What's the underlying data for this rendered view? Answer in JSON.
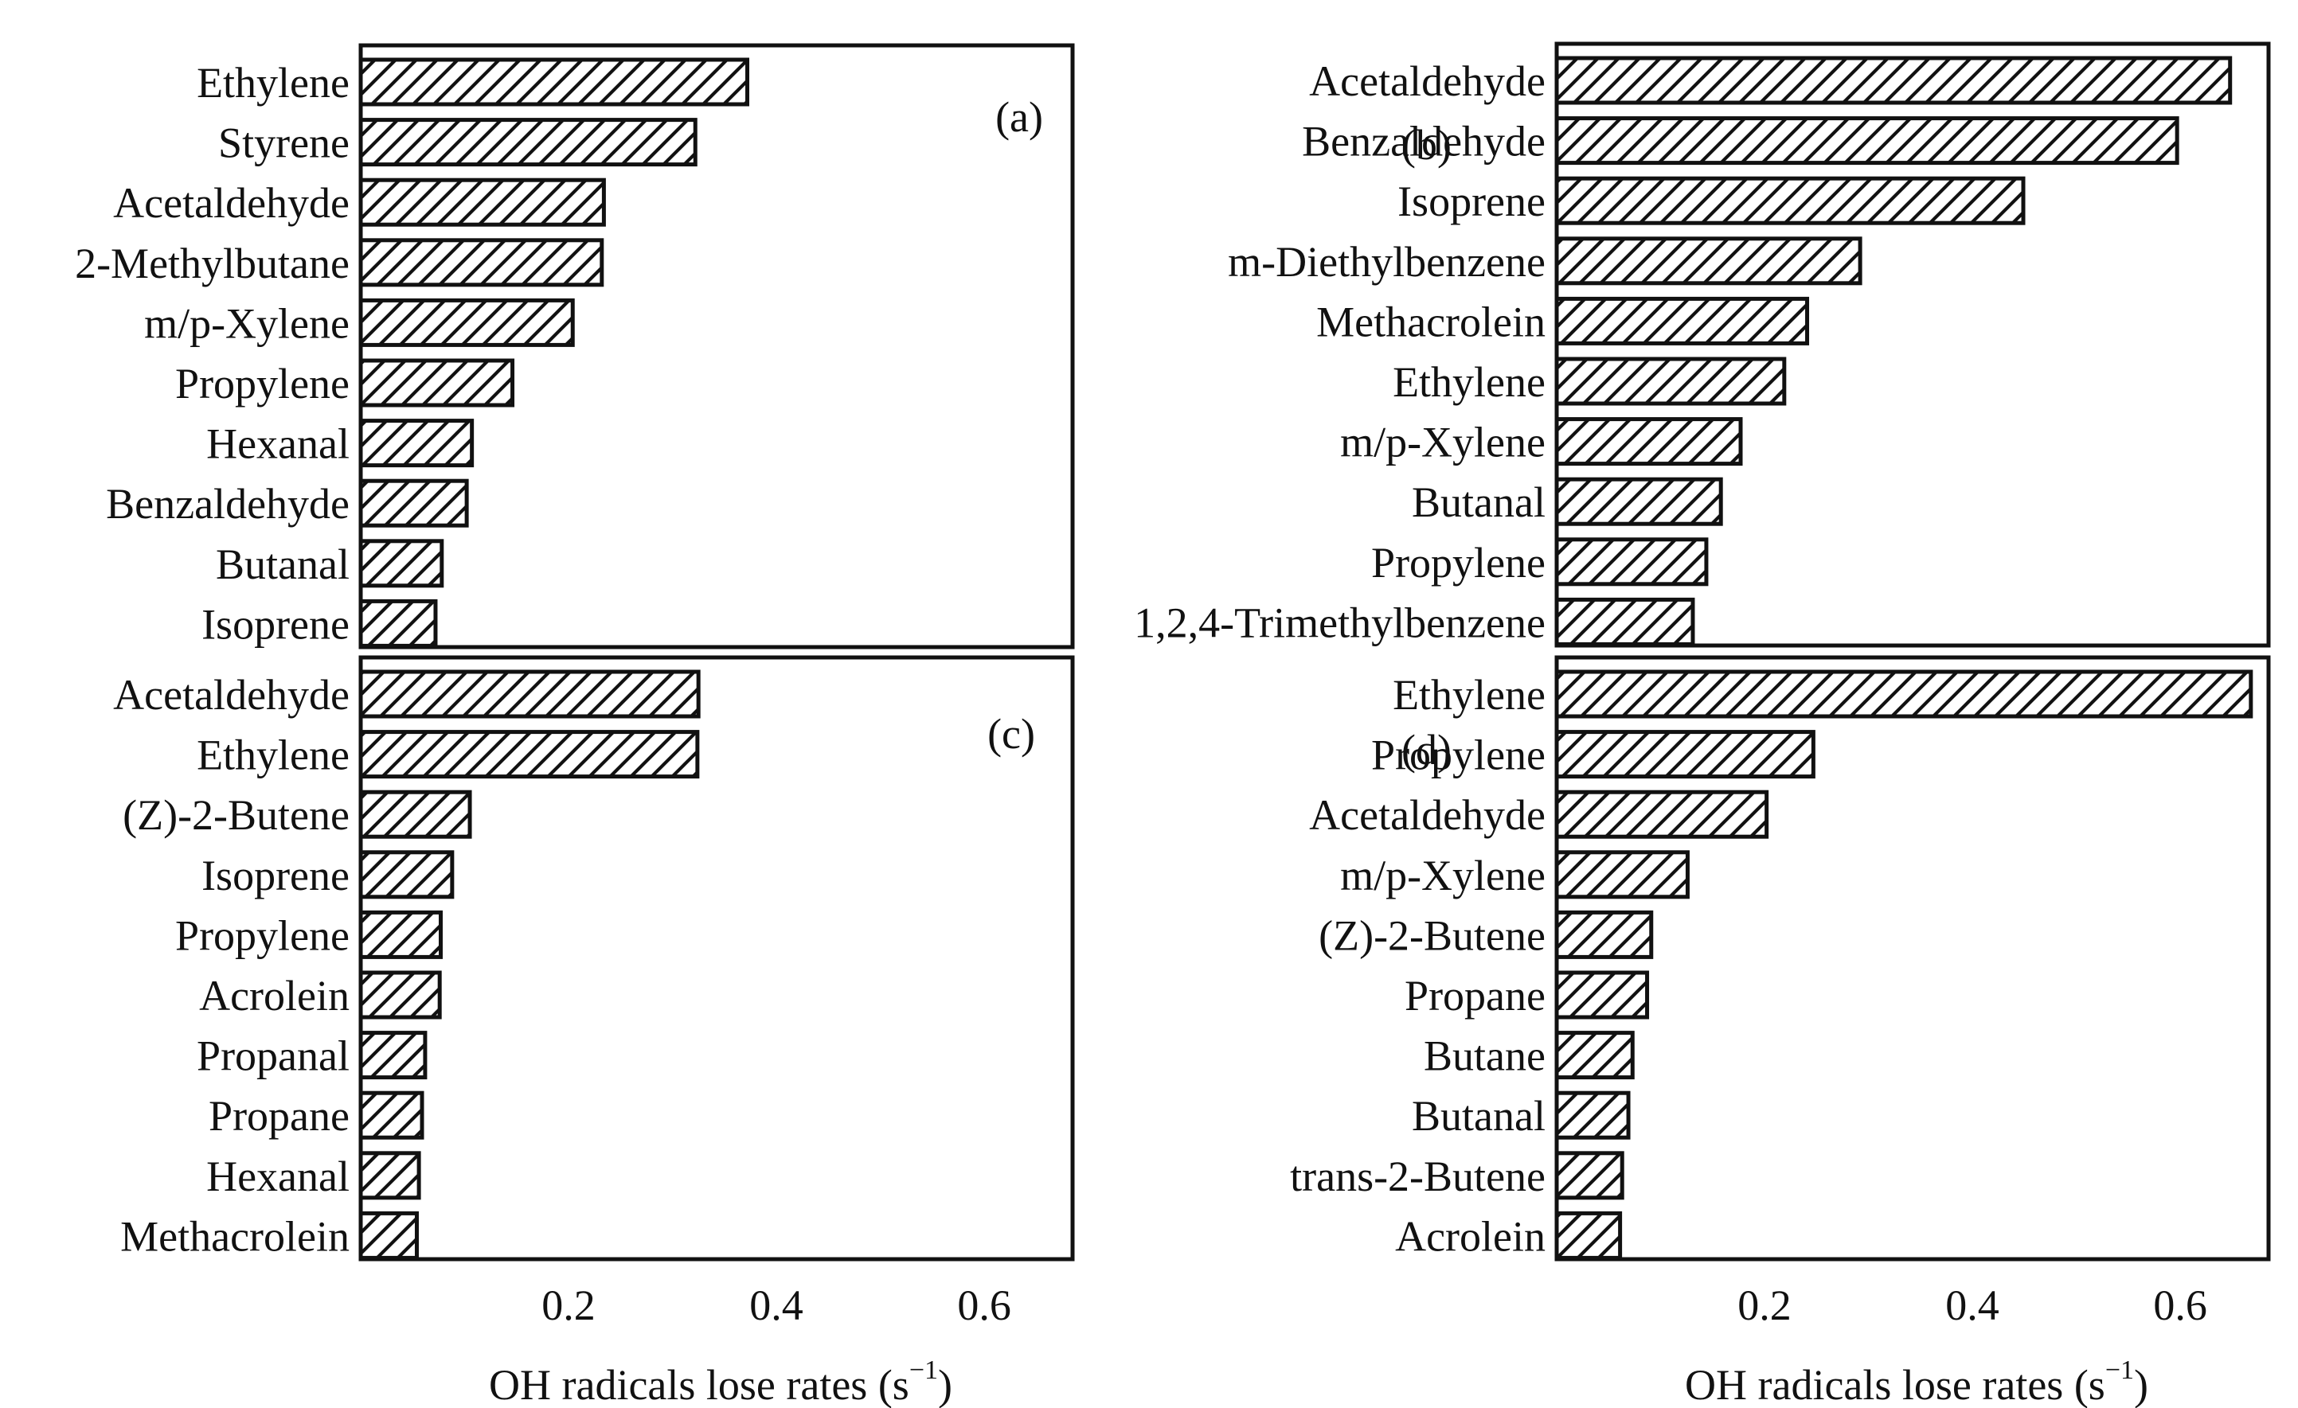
{
  "chart_data": [
    {
      "type": "bar",
      "orientation": "horizontal",
      "panel_label": "(a)",
      "categories": [
        "Ethylene",
        "Styrene",
        "Acetaldehyde",
        "2-Methylbutane",
        "m/p-Xylene",
        "Propylene",
        "Hexanal",
        "Benzaldehyde",
        "Butanal",
        "Isoprene"
      ],
      "values": [
        0.372,
        0.322,
        0.234,
        0.232,
        0.204,
        0.146,
        0.107,
        0.102,
        0.078,
        0.072
      ],
      "xlim": [
        0,
        0.685
      ],
      "xticks": [
        0.2,
        0.4,
        0.6
      ],
      "xtick_labels": [
        "0.2",
        "0.4",
        "0.6"
      ],
      "xlabel": "",
      "ylabel": ""
    },
    {
      "type": "bar",
      "orientation": "horizontal",
      "panel_label": "(b)",
      "categories": [
        "Acetaldehyde",
        "Benzaldehyde",
        "Isoprene",
        "m-Diethylbenzene",
        "Methacrolein",
        "Ethylene",
        "m/p-Xylene",
        "Butanal",
        "Propylene",
        "1,2,4-Trimethylbenzene"
      ],
      "values": [
        0.648,
        0.597,
        0.449,
        0.292,
        0.241,
        0.219,
        0.177,
        0.158,
        0.144,
        0.131
      ],
      "xlim": [
        0,
        0.685
      ],
      "xticks": [
        0.2,
        0.4,
        0.6
      ],
      "xtick_labels": [
        "0.2",
        "0.4",
        "0.6"
      ],
      "xlabel": "",
      "ylabel": ""
    },
    {
      "type": "bar",
      "orientation": "horizontal",
      "panel_label": "(c)",
      "categories": [
        "Acetaldehyde",
        "Ethylene",
        "(Z)-2-Butene",
        "Isoprene",
        "Propylene",
        "Acrolein",
        "Propanal",
        "Propane",
        "Hexanal",
        "Methacrolein"
      ],
      "values": [
        0.325,
        0.324,
        0.105,
        0.088,
        0.077,
        0.076,
        0.062,
        0.059,
        0.056,
        0.054
      ],
      "xlim": [
        0,
        0.685
      ],
      "xticks": [
        0.2,
        0.4,
        0.6
      ],
      "xtick_labels": [
        "0.2",
        "0.4",
        "0.6"
      ],
      "xlabel": "OH radicals lose rates (s",
      "xlabel_superscript": "−1",
      "xlabel_suffix": ")",
      "ylabel": ""
    },
    {
      "type": "bar",
      "orientation": "horizontal",
      "panel_label": "(d)",
      "categories": [
        "Ethylene",
        "Propylene",
        "Acetaldehyde",
        "m/p-Xylene",
        "(Z)-2-Butene",
        "Propane",
        "Butane",
        "Butanal",
        "trans-2-Butene",
        "Acrolein"
      ],
      "values": [
        0.668,
        0.247,
        0.202,
        0.126,
        0.091,
        0.087,
        0.073,
        0.069,
        0.063,
        0.061
      ],
      "xlim": [
        0,
        0.685
      ],
      "xticks": [
        0.2,
        0.4,
        0.6
      ],
      "xtick_labels": [
        "0.2",
        "0.4",
        "0.6"
      ],
      "xlabel": "OH radicals lose rates (s",
      "xlabel_superscript": "−1",
      "xlabel_suffix": ")",
      "ylabel": ""
    }
  ]
}
